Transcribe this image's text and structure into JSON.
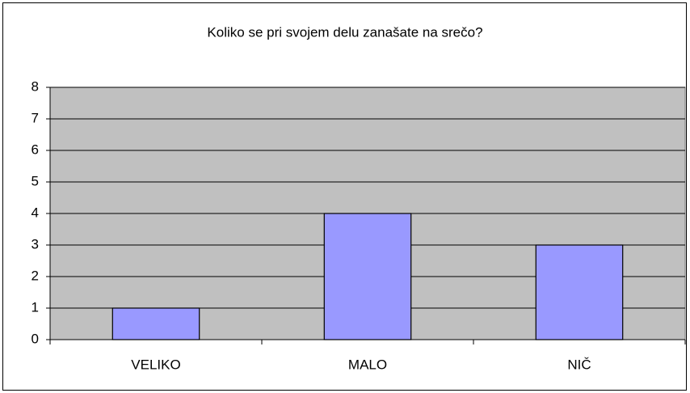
{
  "chart_data": {
    "type": "bar",
    "title": "Koliko se pri svojem delu zanašate na srečo?",
    "categories": [
      "VELIKO",
      "MALO",
      "NIČ"
    ],
    "values": [
      1,
      4,
      3
    ],
    "color": "#9999ff",
    "ylim": [
      0,
      8
    ],
    "yticks": [
      0,
      1,
      2,
      3,
      4,
      5,
      6,
      7,
      8
    ],
    "grid": true
  }
}
